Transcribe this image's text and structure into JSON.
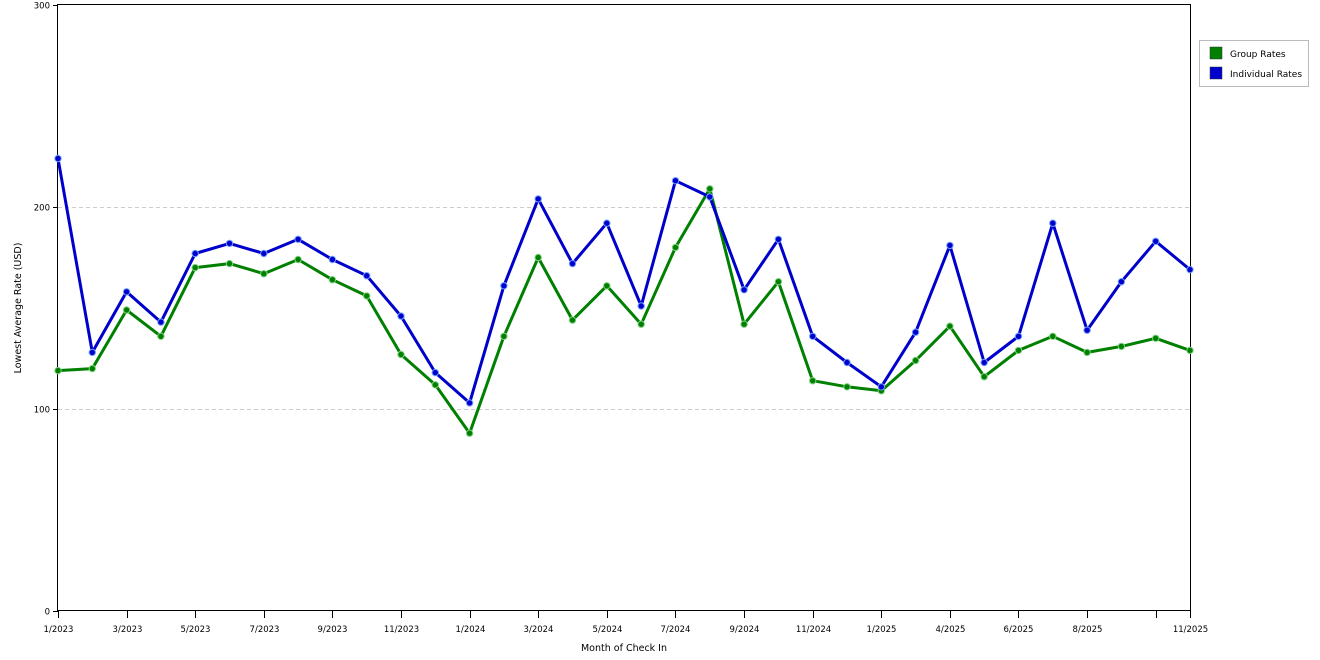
{
  "chart_data": {
    "type": "line",
    "xlabel": "Month of Check In",
    "ylabel": "Lowest Average Rate (USD)",
    "ylim": [
      0,
      300
    ],
    "yticks": [
      0,
      100,
      200,
      300
    ],
    "grid": "horizontal dashed",
    "legend_position": "right",
    "months": [
      "1/2023",
      "2/2023",
      "3/2023",
      "4/2023",
      "5/2023",
      "6/2023",
      "7/2023",
      "8/2023",
      "9/2023",
      "10/2023",
      "11/2023",
      "12/2023",
      "1/2024",
      "2/2024",
      "3/2024",
      "4/2024",
      "5/2024",
      "6/2024",
      "7/2024",
      "8/2024",
      "9/2024",
      "10/2024",
      "11/2024",
      "12/2024",
      "1/2025",
      "2/2025",
      "4/2025",
      "5/2025",
      "6/2025",
      "7/2025",
      "8/2025",
      "9/2025",
      "10/2025",
      "11/2025"
    ],
    "x_tick_labels": [
      "1/2023",
      "",
      "3/2023",
      "",
      "5/2023",
      "",
      "7/2023",
      "",
      "9/2023",
      "",
      "11/2023",
      "",
      "1/2024",
      "",
      "3/2024",
      "",
      "5/2024",
      "",
      "7/2024",
      "",
      "9/2024",
      "",
      "11/2024",
      "",
      "1/2025",
      "",
      "4/2025",
      "",
      "6/2025",
      "",
      "8/2025",
      "",
      "",
      "11/2025"
    ],
    "series": [
      {
        "name": "Group Rates",
        "color": "#008000",
        "values": [
          119,
          120,
          149,
          136,
          170,
          172,
          167,
          174,
          164,
          156,
          127,
          112,
          88,
          136,
          175,
          144,
          161,
          142,
          180,
          209,
          142,
          163,
          114,
          111,
          109,
          124,
          141,
          116,
          129,
          136,
          128,
          131,
          135,
          129
        ]
      },
      {
        "name": "Individual Rates",
        "color": "#0000cc",
        "values": [
          224,
          128,
          158,
          143,
          177,
          182,
          177,
          184,
          174,
          166,
          146,
          118,
          103,
          161,
          204,
          172,
          192,
          151,
          213,
          205,
          159,
          184,
          136,
          123,
          111,
          138,
          181,
          123,
          136,
          192,
          139,
          163,
          183,
          169
        ]
      }
    ]
  }
}
